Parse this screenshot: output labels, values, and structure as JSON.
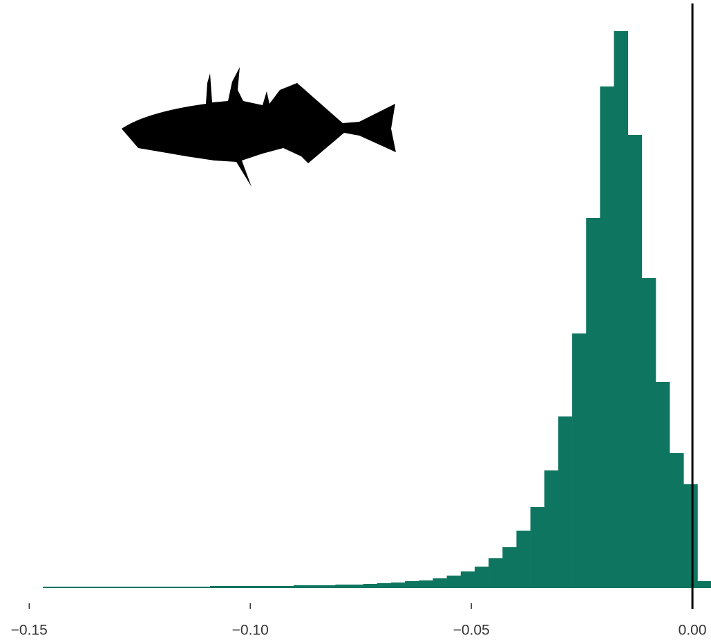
{
  "chart_data": {
    "type": "histogram",
    "bins": [
      -0.1469,
      -0.14375,
      -0.1406,
      -0.13745,
      -0.1343,
      -0.13115,
      -0.128,
      -0.12485,
      -0.1217,
      -0.11855,
      -0.1154,
      -0.11225,
      -0.1091,
      -0.10595,
      -0.1028,
      -0.09965,
      -0.0965,
      -0.09335,
      -0.0902,
      -0.08705,
      -0.0839,
      -0.08075,
      -0.0776,
      -0.07445,
      -0.0713,
      -0.06815,
      -0.065,
      -0.06185,
      -0.0587,
      -0.05555,
      -0.0524,
      -0.04925,
      -0.0461,
      -0.04295,
      -0.0398,
      -0.03665,
      -0.0335,
      -0.03035,
      -0.0272,
      -0.02405,
      -0.0209,
      -0.01775,
      -0.0146,
      -0.01145,
      -0.0083,
      -0.00515,
      -0.002,
      0.00115,
      0.0043
    ],
    "values": [
      2,
      2,
      2,
      2,
      2,
      2,
      2,
      2,
      2,
      2,
      2,
      2,
      3,
      3,
      3,
      3,
      3,
      3,
      4,
      4,
      4,
      5,
      5,
      6,
      7,
      8,
      10,
      11,
      14,
      18,
      24,
      31,
      43,
      59,
      83,
      117,
      170,
      248,
      368,
      535,
      725,
      805,
      655,
      448,
      298,
      195,
      150,
      10
    ],
    "color": "#0e7660",
    "xlim": [
      -0.1566,
      0.0042
    ],
    "ylim": [
      0,
      810
    ],
    "xticks": [
      {
        "value": -0.15,
        "label": "−0.15"
      },
      {
        "value": -0.1,
        "label": "−0.10"
      },
      {
        "value": -0.05,
        "label": "−0.05"
      },
      {
        "value": 0,
        "label": "0.00"
      }
    ],
    "vline": 0
  }
}
